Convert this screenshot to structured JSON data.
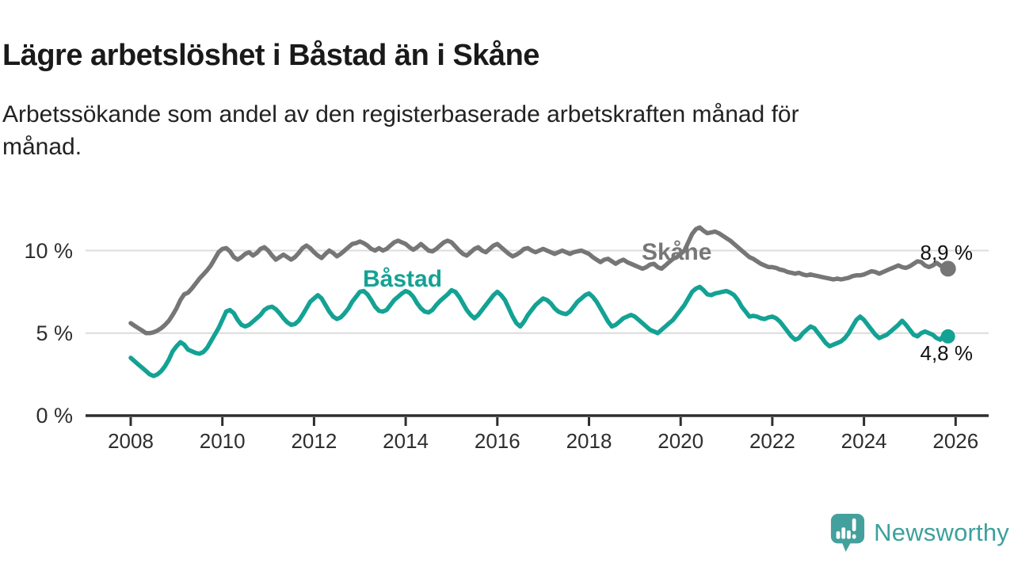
{
  "header": {
    "title": "Lägre arbetslöshet i Båstad än i Skåne",
    "subtitle_lines": [
      "Arbetssökande som andel av den registerbaserade arbetskraften månad för",
      "månad."
    ]
  },
  "colors": {
    "skane": "#767676",
    "bastad": "#13a294",
    "grid": "#dcdcdc",
    "axis": "#2e2e2e",
    "logo": "#44a09c"
  },
  "branding": {
    "name": "Newsworthy"
  },
  "chart_data": {
    "type": "line",
    "title": "Lägre arbetslöshet i Båstad än i Skåne",
    "subtitle": "Arbetssökande som andel av den registerbaserade arbetskraften månad för månad.",
    "x_unit": "year (monthly data)",
    "y_unit": "%",
    "x_start_year": 2008,
    "x_start_month": 1,
    "interval": "monthly",
    "ylim": [
      0,
      11.6
    ],
    "grid": "horizontal",
    "y_ticks": [
      {
        "value": 0,
        "label": "0 %"
      },
      {
        "value": 5,
        "label": "5 %"
      },
      {
        "value": 10,
        "label": "10 %"
      }
    ],
    "x_tick_years": [
      2008,
      2010,
      2012,
      2014,
      2016,
      2018,
      2020,
      2022,
      2024,
      2026
    ],
    "x_tick_labels": [
      "2008",
      "2010",
      "2012",
      "2014",
      "2016",
      "2018",
      "2020",
      "2022",
      "2024",
      "2026"
    ],
    "series": [
      {
        "name": "Skåne",
        "color": "#767676",
        "end_value_label": "8,9 %",
        "values": [
          5.6,
          5.45,
          5.3,
          5.15,
          5.0,
          5.0,
          5.05,
          5.15,
          5.3,
          5.5,
          5.75,
          6.1,
          6.5,
          7.0,
          7.35,
          7.45,
          7.7,
          8.0,
          8.3,
          8.55,
          8.8,
          9.1,
          9.5,
          9.9,
          10.1,
          10.15,
          9.95,
          9.6,
          9.45,
          9.6,
          9.8,
          9.9,
          9.7,
          9.85,
          10.1,
          10.2,
          10.0,
          9.7,
          9.45,
          9.6,
          9.75,
          9.6,
          9.45,
          9.6,
          9.85,
          10.15,
          10.3,
          10.15,
          9.9,
          9.7,
          9.55,
          9.8,
          10.0,
          9.85,
          9.65,
          9.8,
          10.0,
          10.2,
          10.4,
          10.45,
          10.55,
          10.45,
          10.3,
          10.1,
          10.0,
          10.15,
          10.0,
          10.1,
          10.3,
          10.5,
          10.6,
          10.5,
          10.4,
          10.2,
          10.05,
          10.2,
          10.4,
          10.2,
          10.0,
          9.95,
          10.1,
          10.3,
          10.5,
          10.6,
          10.5,
          10.25,
          10.0,
          9.8,
          9.7,
          9.9,
          10.1,
          10.2,
          10.0,
          9.9,
          10.1,
          10.3,
          10.4,
          10.2,
          10.0,
          9.8,
          9.65,
          9.75,
          9.9,
          10.1,
          10.15,
          10.0,
          9.9,
          10.0,
          10.1,
          10.0,
          9.9,
          9.8,
          9.9,
          10.0,
          9.9,
          9.8,
          9.9,
          9.95,
          10.0,
          9.9,
          9.8,
          9.6,
          9.45,
          9.3,
          9.45,
          9.5,
          9.35,
          9.2,
          9.35,
          9.45,
          9.3,
          9.2,
          9.1,
          9.0,
          8.9,
          9.0,
          9.15,
          9.2,
          9.0,
          8.9,
          9.1,
          9.3,
          9.5,
          9.6,
          9.8,
          10.0,
          10.5,
          11.0,
          11.3,
          11.4,
          11.2,
          11.05,
          11.1,
          11.15,
          11.05,
          10.9,
          10.75,
          10.6,
          10.4,
          10.2,
          10.0,
          9.8,
          9.6,
          9.5,
          9.35,
          9.2,
          9.1,
          9.0,
          9.0,
          8.95,
          8.85,
          8.8,
          8.7,
          8.65,
          8.6,
          8.65,
          8.55,
          8.5,
          8.55,
          8.5,
          8.45,
          8.4,
          8.35,
          8.3,
          8.25,
          8.3,
          8.25,
          8.3,
          8.35,
          8.45,
          8.5,
          8.5,
          8.55,
          8.65,
          8.75,
          8.7,
          8.6,
          8.7,
          8.8,
          8.9,
          9.0,
          9.1,
          9.0,
          8.95,
          9.05,
          9.2,
          9.35,
          9.3,
          9.1,
          9.0,
          9.1,
          9.25,
          9.1,
          8.95,
          8.9
        ]
      },
      {
        "name": "Båstad",
        "color": "#13a294",
        "end_value_label": "4,8 %",
        "values": [
          3.5,
          3.3,
          3.1,
          2.9,
          2.7,
          2.5,
          2.4,
          2.5,
          2.7,
          3.0,
          3.4,
          3.9,
          4.2,
          4.45,
          4.3,
          4.0,
          3.9,
          3.8,
          3.75,
          3.85,
          4.1,
          4.5,
          4.9,
          5.3,
          5.8,
          6.3,
          6.4,
          6.2,
          5.8,
          5.5,
          5.4,
          5.5,
          5.7,
          5.9,
          6.1,
          6.4,
          6.55,
          6.6,
          6.45,
          6.2,
          5.9,
          5.65,
          5.5,
          5.55,
          5.75,
          6.1,
          6.5,
          6.9,
          7.1,
          7.3,
          7.1,
          6.7,
          6.3,
          6.0,
          5.85,
          5.95,
          6.2,
          6.5,
          6.9,
          7.2,
          7.5,
          7.55,
          7.35,
          7.0,
          6.6,
          6.35,
          6.3,
          6.4,
          6.7,
          7.0,
          7.2,
          7.4,
          7.55,
          7.45,
          7.2,
          6.8,
          6.5,
          6.3,
          6.25,
          6.4,
          6.7,
          6.95,
          7.15,
          7.35,
          7.6,
          7.5,
          7.2,
          6.8,
          6.4,
          6.1,
          5.9,
          6.1,
          6.4,
          6.7,
          7.0,
          7.3,
          7.5,
          7.3,
          7.0,
          6.5,
          6.0,
          5.6,
          5.4,
          5.7,
          6.1,
          6.4,
          6.7,
          6.9,
          7.1,
          7.0,
          6.8,
          6.5,
          6.3,
          6.2,
          6.15,
          6.3,
          6.6,
          6.9,
          7.1,
          7.3,
          7.4,
          7.2,
          6.9,
          6.5,
          6.1,
          5.7,
          5.4,
          5.5,
          5.7,
          5.9,
          6.0,
          6.1,
          6.0,
          5.8,
          5.6,
          5.4,
          5.2,
          5.1,
          5.0,
          5.2,
          5.4,
          5.6,
          5.8,
          6.1,
          6.4,
          6.7,
          7.1,
          7.5,
          7.7,
          7.8,
          7.6,
          7.35,
          7.3,
          7.4,
          7.45,
          7.5,
          7.55,
          7.45,
          7.3,
          7.0,
          6.6,
          6.3,
          6.0,
          6.05,
          6.0,
          5.9,
          5.85,
          5.95,
          6.0,
          5.9,
          5.7,
          5.4,
          5.1,
          4.8,
          4.6,
          4.7,
          5.0,
          5.2,
          5.4,
          5.3,
          5.0,
          4.7,
          4.4,
          4.2,
          4.3,
          4.4,
          4.5,
          4.7,
          5.0,
          5.4,
          5.8,
          6.0,
          5.8,
          5.5,
          5.2,
          4.9,
          4.7,
          4.8,
          4.9,
          5.1,
          5.3,
          5.5,
          5.75,
          5.5,
          5.2,
          4.9,
          4.8,
          5.0,
          5.1,
          5.0,
          4.9,
          4.7,
          4.6,
          4.9,
          4.8
        ]
      }
    ]
  }
}
